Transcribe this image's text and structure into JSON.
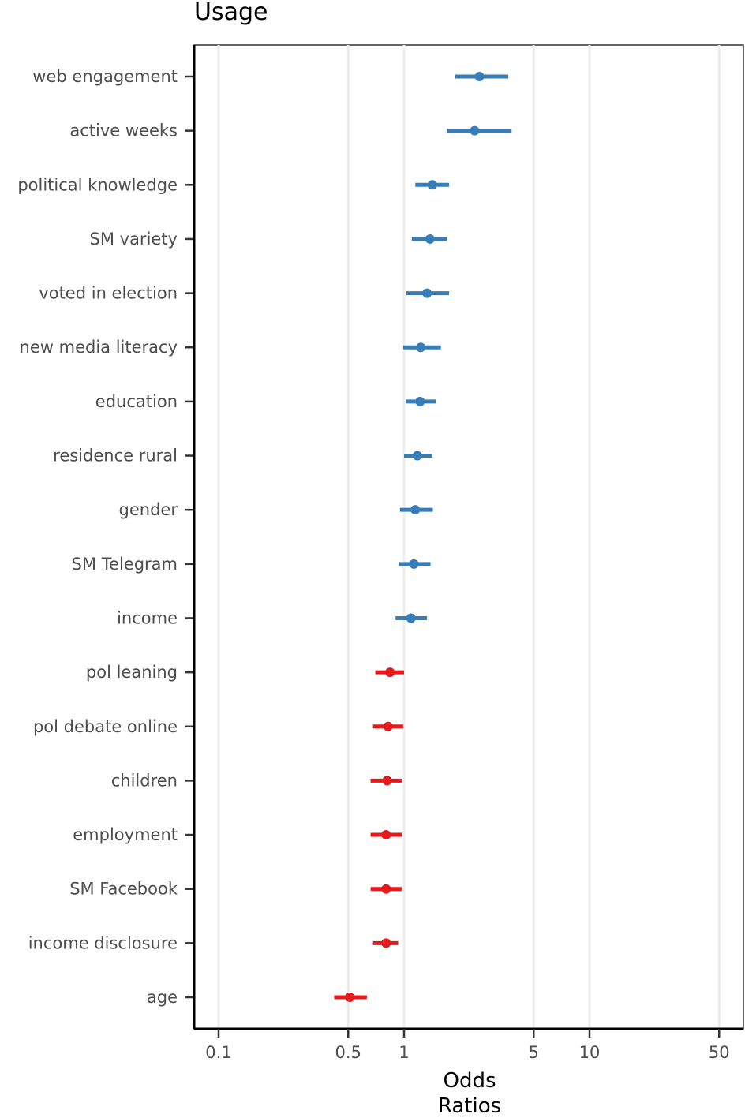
{
  "chart_data": {
    "type": "forest",
    "title": "Usage",
    "xlabel_lines": [
      "Odds",
      "Ratios"
    ],
    "ylabel": "",
    "x_scale": "log",
    "xlim": [
      0.08,
      60
    ],
    "x_major_ticks": [
      0.1,
      0.5,
      1,
      5,
      10,
      50
    ],
    "x_tick_labels": [
      "0.1",
      "0.5",
      "1",
      "5",
      "10",
      "50"
    ],
    "x_minor_ticks": [
      1
    ],
    "grid": true,
    "legend": "none",
    "colors": {
      "positive": "#377eb8",
      "negative": "#e41a1c",
      "grid": "#ebebeb"
    },
    "terms": [
      {
        "label": "web engagement",
        "estimate": 2.55,
        "conf_low": 1.88,
        "conf_high": 3.65,
        "direction": "positive"
      },
      {
        "label": "active weeks",
        "estimate": 2.4,
        "conf_low": 1.7,
        "conf_high": 3.8,
        "direction": "positive"
      },
      {
        "label": "political knowledge",
        "estimate": 1.42,
        "conf_low": 1.15,
        "conf_high": 1.75,
        "direction": "positive"
      },
      {
        "label": "SM variety",
        "estimate": 1.38,
        "conf_low": 1.1,
        "conf_high": 1.7,
        "direction": "positive"
      },
      {
        "label": "voted in election",
        "estimate": 1.33,
        "conf_low": 1.03,
        "conf_high": 1.75,
        "direction": "positive"
      },
      {
        "label": "new media literacy",
        "estimate": 1.23,
        "conf_low": 0.99,
        "conf_high": 1.58,
        "direction": "positive"
      },
      {
        "label": "education",
        "estimate": 1.22,
        "conf_low": 1.02,
        "conf_high": 1.48,
        "direction": "positive"
      },
      {
        "label": "residence rural",
        "estimate": 1.18,
        "conf_low": 1.0,
        "conf_high": 1.42,
        "direction": "positive"
      },
      {
        "label": "gender",
        "estimate": 1.15,
        "conf_low": 0.95,
        "conf_high": 1.43,
        "direction": "positive"
      },
      {
        "label": "SM Telegram",
        "estimate": 1.13,
        "conf_low": 0.94,
        "conf_high": 1.39,
        "direction": "positive"
      },
      {
        "label": "income",
        "estimate": 1.09,
        "conf_low": 0.9,
        "conf_high": 1.33,
        "direction": "positive"
      },
      {
        "label": "pol leaning",
        "estimate": 0.84,
        "conf_low": 0.7,
        "conf_high": 1.0,
        "direction": "negative"
      },
      {
        "label": "pol debate online",
        "estimate": 0.82,
        "conf_low": 0.68,
        "conf_high": 0.99,
        "direction": "negative"
      },
      {
        "label": "children",
        "estimate": 0.81,
        "conf_low": 0.66,
        "conf_high": 0.98,
        "direction": "negative"
      },
      {
        "label": "employment",
        "estimate": 0.8,
        "conf_low": 0.66,
        "conf_high": 0.98,
        "direction": "negative"
      },
      {
        "label": "SM Facebook",
        "estimate": 0.8,
        "conf_low": 0.66,
        "conf_high": 0.97,
        "direction": "negative"
      },
      {
        "label": "income disclosure",
        "estimate": 0.8,
        "conf_low": 0.68,
        "conf_high": 0.93,
        "direction": "negative"
      },
      {
        "label": "age",
        "estimate": 0.51,
        "conf_low": 0.42,
        "conf_high": 0.63,
        "direction": "negative"
      }
    ]
  }
}
